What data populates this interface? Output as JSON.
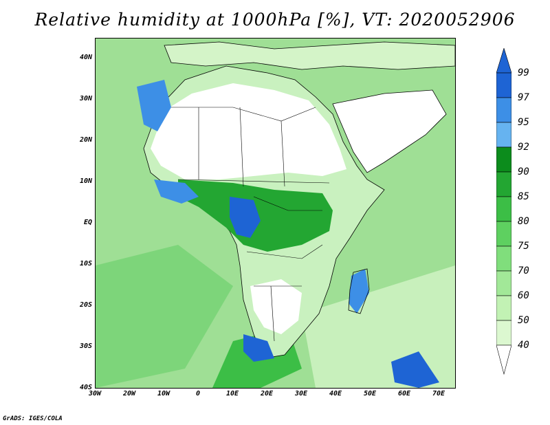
{
  "title": "Relative humidity at 1000hPa [%], VT: 2020052906",
  "credit": "GrADS: IGES/COLA",
  "map": {
    "region": "Africa",
    "lon_range": [
      -30,
      75
    ],
    "lat_range": [
      -40,
      45
    ],
    "lat_ticks": [
      "40N",
      "30N",
      "20N",
      "10N",
      "EQ",
      "10S",
      "20S",
      "30S",
      "40S"
    ],
    "lon_ticks": [
      "30W",
      "20W",
      "10W",
      "0",
      "10E",
      "20E",
      "30E",
      "40E",
      "50E",
      "60E",
      "70E"
    ]
  },
  "colorbar": {
    "labels": [
      "99",
      "97",
      "95",
      "92",
      "90",
      "85",
      "80",
      "75",
      "70",
      "60",
      "50",
      "40"
    ],
    "colors": [
      "#1e64d4",
      "#3d8fe6",
      "#66b3f0",
      "#0c8c1c",
      "#23a632",
      "#3cbe46",
      "#5ed060",
      "#80de7c",
      "#a2e898",
      "#c2f2b4",
      "#dcf8d0",
      "#f0fcec"
    ],
    "over_color": "#1e64d4",
    "under_color": "#ffffff"
  }
}
